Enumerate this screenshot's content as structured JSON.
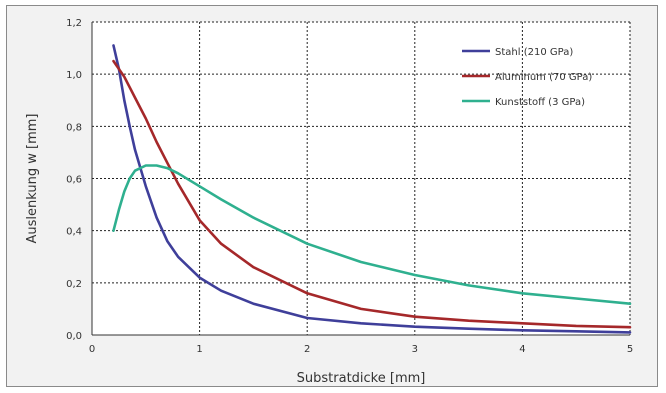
{
  "chart_data": {
    "type": "line",
    "title": "",
    "xlabel": "Substratdicke [mm]",
    "ylabel": "Auslenkung w [mm]",
    "xlim": [
      0,
      5
    ],
    "ylim": [
      0,
      1.2
    ],
    "x_ticks": [
      "0",
      "1",
      "2",
      "3",
      "4",
      "5"
    ],
    "y_ticks": [
      "0,0",
      "0,2",
      "0,4",
      "0,6",
      "0,8",
      "1,0",
      "1,2"
    ],
    "grid": true,
    "legend_position": "top-right",
    "series": [
      {
        "name": "Stahl (210 GPa)",
        "color": "#3f3f9a",
        "x": [
          0.2,
          0.25,
          0.3,
          0.35,
          0.4,
          0.5,
          0.6,
          0.7,
          0.8,
          1.0,
          1.2,
          1.5,
          2.0,
          2.5,
          3.0,
          3.5,
          4.0,
          4.5,
          5.0
        ],
        "y": [
          1.11,
          1.02,
          0.9,
          0.8,
          0.71,
          0.57,
          0.45,
          0.36,
          0.3,
          0.22,
          0.17,
          0.12,
          0.065,
          0.045,
          0.032,
          0.024,
          0.018,
          0.014,
          0.01
        ]
      },
      {
        "name": "Aluminum (70 GPa)",
        "color": "#a5282a",
        "x": [
          0.2,
          0.3,
          0.4,
          0.5,
          0.6,
          0.7,
          0.8,
          1.0,
          1.2,
          1.5,
          2.0,
          2.5,
          3.0,
          3.5,
          4.0,
          4.5,
          5.0
        ],
        "y": [
          1.05,
          0.99,
          0.91,
          0.83,
          0.74,
          0.66,
          0.58,
          0.44,
          0.35,
          0.26,
          0.16,
          0.1,
          0.07,
          0.055,
          0.045,
          0.035,
          0.03
        ]
      },
      {
        "name": "Kunststoff (3 GPa)",
        "color": "#2fb08f",
        "x": [
          0.2,
          0.25,
          0.3,
          0.35,
          0.4,
          0.5,
          0.6,
          0.7,
          0.8,
          1.0,
          1.2,
          1.5,
          2.0,
          2.5,
          3.0,
          3.5,
          4.0,
          4.5,
          5.0
        ],
        "y": [
          0.4,
          0.48,
          0.55,
          0.6,
          0.63,
          0.65,
          0.65,
          0.64,
          0.62,
          0.57,
          0.52,
          0.45,
          0.35,
          0.28,
          0.23,
          0.19,
          0.16,
          0.14,
          0.12
        ]
      }
    ]
  }
}
